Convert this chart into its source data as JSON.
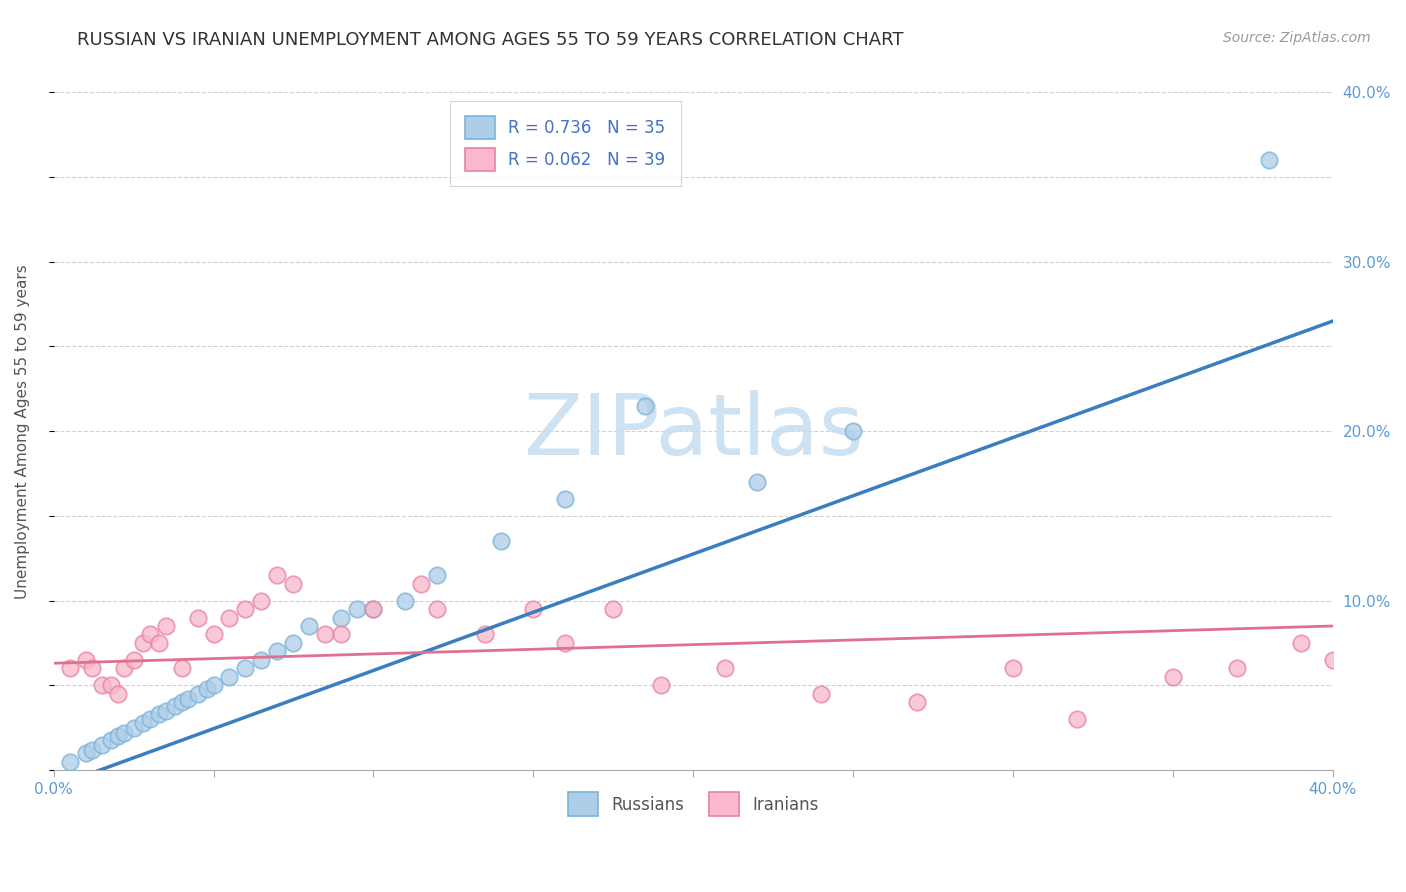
{
  "title": "RUSSIAN VS IRANIAN UNEMPLOYMENT AMONG AGES 55 TO 59 YEARS CORRELATION CHART",
  "source": "Source: ZipAtlas.com",
  "ylabel": "Unemployment Among Ages 55 to 59 years",
  "xlim": [
    0.0,
    0.4
  ],
  "ylim": [
    0.0,
    0.4
  ],
  "xtick_positions": [
    0.0,
    0.05,
    0.1,
    0.15,
    0.2,
    0.25,
    0.3,
    0.35,
    0.4
  ],
  "xtick_labels": [
    "0.0%",
    "",
    "",
    "",
    "",
    "",
    "",
    "",
    "40.0%"
  ],
  "ytick_positions": [
    0.0,
    0.05,
    0.1,
    0.15,
    0.2,
    0.25,
    0.3,
    0.35,
    0.4
  ],
  "ytick_labels_right": [
    "",
    "",
    "10.0%",
    "",
    "20.0%",
    "",
    "30.0%",
    "",
    "40.0%"
  ],
  "russian_fill_color": "#aecde8",
  "russian_edge_color": "#7ab3d8",
  "iranian_fill_color": "#f9b8cb",
  "iranian_edge_color": "#e882a0",
  "russian_line_color": "#3a7ebf",
  "iranian_line_color": "#e07090",
  "R_russian": 0.736,
  "N_russian": 35,
  "R_iranian": 0.062,
  "N_iranian": 39,
  "watermark_text": "ZIPatlas",
  "watermark_color": "#c8dff2",
  "title_fontsize": 13,
  "axis_label_fontsize": 11,
  "tick_fontsize": 11,
  "legend_fontsize": 12,
  "source_fontsize": 10,
  "russian_x": [
    0.005,
    0.01,
    0.012,
    0.015,
    0.018,
    0.02,
    0.022,
    0.025,
    0.028,
    0.03,
    0.033,
    0.035,
    0.038,
    0.04,
    0.042,
    0.045,
    0.048,
    0.05,
    0.055,
    0.06,
    0.065,
    0.07,
    0.075,
    0.08,
    0.09,
    0.095,
    0.1,
    0.11,
    0.12,
    0.14,
    0.16,
    0.185,
    0.22,
    0.25,
    0.38
  ],
  "russian_y": [
    0.005,
    0.01,
    0.012,
    0.015,
    0.018,
    0.02,
    0.022,
    0.025,
    0.028,
    0.03,
    0.033,
    0.035,
    0.038,
    0.04,
    0.042,
    0.045,
    0.048,
    0.05,
    0.055,
    0.06,
    0.065,
    0.07,
    0.075,
    0.085,
    0.09,
    0.095,
    0.095,
    0.1,
    0.115,
    0.135,
    0.16,
    0.215,
    0.17,
    0.2,
    0.36
  ],
  "iranian_x": [
    0.005,
    0.01,
    0.012,
    0.015,
    0.018,
    0.02,
    0.022,
    0.025,
    0.028,
    0.03,
    0.033,
    0.035,
    0.04,
    0.045,
    0.05,
    0.055,
    0.06,
    0.065,
    0.07,
    0.075,
    0.085,
    0.09,
    0.1,
    0.115,
    0.12,
    0.135,
    0.15,
    0.16,
    0.175,
    0.19,
    0.21,
    0.24,
    0.27,
    0.3,
    0.32,
    0.35,
    0.37,
    0.39,
    0.4
  ],
  "iranian_y": [
    0.06,
    0.065,
    0.06,
    0.05,
    0.05,
    0.045,
    0.06,
    0.065,
    0.075,
    0.08,
    0.075,
    0.085,
    0.06,
    0.09,
    0.08,
    0.09,
    0.095,
    0.1,
    0.115,
    0.11,
    0.08,
    0.08,
    0.095,
    0.11,
    0.095,
    0.08,
    0.095,
    0.075,
    0.095,
    0.05,
    0.06,
    0.045,
    0.04,
    0.06,
    0.03,
    0.055,
    0.06,
    0.075,
    0.065
  ]
}
